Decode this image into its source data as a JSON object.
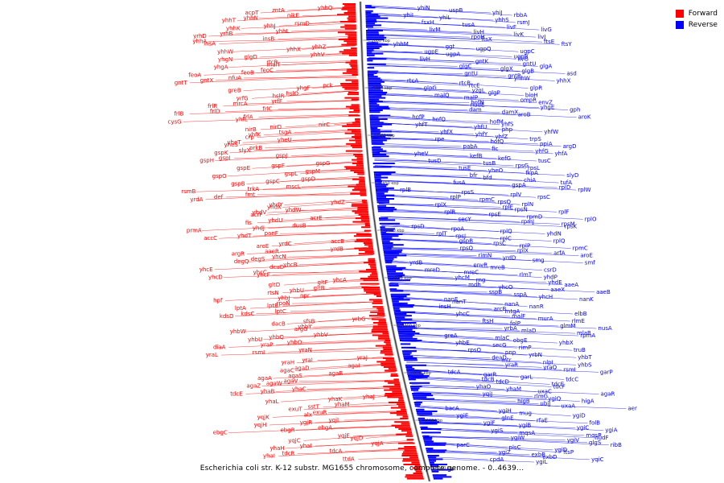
{
  "legend": {
    "forward": {
      "label": "Forward",
      "color": "#ff0000"
    },
    "reverse": {
      "label": "Reverse",
      "color": "#0000ff"
    }
  },
  "caption": "Escherichia coli str. K-12 substr. MG1655 chromosome, complete genome. - 0..4639...",
  "ticks": [
    "3600 kbp",
    "3550 kbp",
    "3500 kbp",
    "3450 kbp",
    "3400 kbp",
    "3350 kbp",
    "3300 kbp",
    "3250 kbp",
    "3200 kbp",
    "3150 kbp"
  ],
  "forward_labels": [
    "yhhQ",
    "zntA",
    "acpT",
    "nikE",
    "yhhN",
    "yhhT",
    "rsmD",
    "yhhJ",
    "yhhK",
    "yhhL",
    "yrhB",
    "yrhD",
    "insB",
    "yhhA",
    "insA",
    "yhhZ",
    "yhhX",
    "yhhW",
    "yhhV",
    "glgD",
    "yhgN",
    "rtcR",
    "malT",
    "yhgA",
    "feoC",
    "feoB",
    "feoA",
    "nfuA",
    "gntX",
    "gntT",
    "pck",
    "yhgF",
    "greB",
    "hslO",
    "hslR",
    "yrfG",
    "yrfF",
    "mrcA",
    "frlR",
    "frlC",
    "frlD",
    "frlB",
    "frlA",
    "yhfL",
    "cysG",
    "nirC",
    "nirD",
    "nirB",
    "tsgA",
    "yhfK",
    "crp",
    "yheU",
    "yheT",
    "yheS",
    "prkB",
    "slyX",
    "gspK",
    "gspJ",
    "gspI",
    "gspH",
    "gspG",
    "gspF",
    "gspE",
    "gspM",
    "gspL",
    "gspO",
    "gspD",
    "gspC",
    "gspB",
    "mscL",
    "trkA",
    "rsmB",
    "fmt",
    "def",
    "yrdA",
    "yhdZ",
    "yhdY",
    "yhdX",
    "yhdW",
    "yhdV",
    "acrF",
    "acrE",
    "yhdU",
    "fis",
    "dusB",
    "yhdJ",
    "prmA",
    "panF",
    "yhdT",
    "accC",
    "accB",
    "yrdC",
    "aroE",
    "yrdB",
    "aaeR",
    "argR",
    "yhcN",
    "degS",
    "degQ",
    "yhcB",
    "dcuD",
    "yhcE",
    "yhcC",
    "yhcF",
    "yhcD",
    "yhcA",
    "gltF",
    "gltD",
    "gltB",
    "yhbU",
    "rtsN",
    "npr",
    "yhbJ",
    "hpf",
    "rpoN",
    "lptB",
    "lptA",
    "lptC",
    "kdsC",
    "kdsD",
    "yrbG",
    "sfsB",
    "dacB",
    "yhbY",
    "argG",
    "yhbW",
    "yhbV",
    "yhbQ",
    "yhbU",
    "yhbO",
    "yraP",
    "diaA",
    "yraN",
    "rsmI",
    "yraL",
    "yraJ",
    "yraI",
    "yraH",
    "agaI",
    "agaD",
    "agaC",
    "agaB",
    "agaS",
    "agaA",
    "agaV",
    "agaW",
    "agaZ",
    "yhaC",
    "yhaB",
    "tdcE",
    "yhaJ",
    "yhaK",
    "yhaL",
    "yhaM",
    "sstT",
    "exuT",
    "exuR",
    "alx",
    "yqjK",
    "yqjI",
    "ygjR",
    "yqjH",
    "ebgA",
    "ebgR",
    "ebgC",
    "yqjE",
    "yqjD",
    "yqjC",
    "yqjA",
    "yhaI",
    "yhaH",
    "tdcA",
    "tdcR",
    "yhaI",
    "ttdA"
  ],
  "reverse_labels": [
    "yhiN",
    "uspB",
    "yhiJ",
    "rbbA",
    "yhiI",
    "yhiL",
    "yhhS",
    "rsmJ",
    "fsxH",
    "tusA",
    "livF",
    "livG",
    "livM",
    "livH",
    "livK",
    "livJ",
    "rpoH",
    "ftsX",
    "ftsE",
    "ftsY",
    "yhhM",
    "ggt",
    "ugpQ",
    "ugpC",
    "ugpE",
    "ugpA",
    "ugpB",
    "livG",
    "livH",
    "gntK",
    "gntU",
    "glgA",
    "glgC",
    "glgX",
    "glgB",
    "asd",
    "gntU",
    "gntR",
    "yhhW",
    "yhhX",
    "rtcA",
    "rtcB",
    "rtcE",
    "glpR",
    "glpG",
    "yzgL",
    "glgP",
    "bioH",
    "malQ",
    "malP",
    "ompR",
    "envZ",
    "hofN",
    "nudE",
    "yhgE",
    "gph",
    "dam",
    "damX",
    "aroB",
    "aroK",
    "hofP",
    "hofO",
    "hofM",
    "yhfS",
    "yhfT",
    "yhfU",
    "php",
    "yhfW",
    "yhfX",
    "yhfY",
    "yhfZ",
    "trpS",
    "rpe",
    "hofQ",
    "ppiA",
    "argD",
    "pabA",
    "fic",
    "yhfG",
    "yhfA",
    "yheV",
    "kefB",
    "kefG",
    "tusC",
    "tusD",
    "tusB",
    "rpsG",
    "rpsL",
    "tusE",
    "yheO",
    "fkpA",
    "slyD",
    "bfr",
    "bfd",
    "chiA",
    "tufA",
    "fusA",
    "gspA",
    "rplD",
    "rplW",
    "rplB",
    "rpsS",
    "rplV",
    "rpsC",
    "rplP",
    "rpmC",
    "rpsQ",
    "rplN",
    "rplX",
    "rplE",
    "rpsN",
    "rplF",
    "rplR",
    "rpsE",
    "rpmD",
    "rplO",
    "secY",
    "rpmJ",
    "rpsM",
    "rpsK",
    "rpsD",
    "rpoA",
    "rplQ",
    "yhdN",
    "rplT",
    "rpsJ",
    "rplC",
    "rplQ",
    "gspB",
    "rpsC",
    "rplP",
    "rpmC",
    "rpsQ",
    "rplX",
    "arfA",
    "aroE",
    "rimN",
    "yrdD",
    "smg",
    "smf",
    "yrdB",
    "envR",
    "mreB",
    "csrD",
    "mreD",
    "mreC",
    "rlmT",
    "yhdP",
    "yhcM",
    "rng",
    "yhdE",
    "aaeA",
    "mdh",
    "yhcO",
    "aaeX",
    "aaeB",
    "sspB",
    "sspA",
    "yhcH",
    "nanK",
    "nanE",
    "nanT",
    "nanA",
    "nanR",
    "insH",
    "arcB",
    "mtgA",
    "elbB",
    "yhcC",
    "malF",
    "murA",
    "rlmE",
    "ftsH",
    "folP",
    "glmM",
    "nusA",
    "yrbA",
    "mlaD",
    "mlaB",
    "rpmA",
    "greA",
    "mlaC",
    "obgE",
    "yhbX",
    "yhbE",
    "secG",
    "rimP",
    "truB",
    "rpsO",
    "pnp",
    "yrbN",
    "yhbT",
    "deaD",
    "mtr",
    "nlpI",
    "yhbS",
    "yraR",
    "yraQ",
    "rsmI",
    "garP",
    "tdcA",
    "garR",
    "garL",
    "tdcC",
    "tdcB",
    "tdcD",
    "tdcE",
    "tdcF",
    "yhaO",
    "yhaM",
    "uxaC",
    "agaR",
    "yqiJ",
    "rlmG",
    "ygiQ",
    "higA",
    "higB",
    "ubiJ",
    "uxaA",
    "aer",
    "bacA",
    "ygiH",
    "mug",
    "ygiD",
    "ygiE",
    "glnE",
    "rfaE",
    "folB",
    "ygiF",
    "ygiB",
    "ygiC",
    "ygiA",
    "ygiS",
    "mqsA",
    "mqsR",
    "nudF",
    "ygiW",
    "ygiV",
    "glgS",
    "ribB",
    "parC",
    "plsC",
    "ygiD",
    "ftsP",
    "ygiZ",
    "exbB",
    "exbD",
    "yqiC",
    "cpdA",
    "ygiL"
  ]
}
